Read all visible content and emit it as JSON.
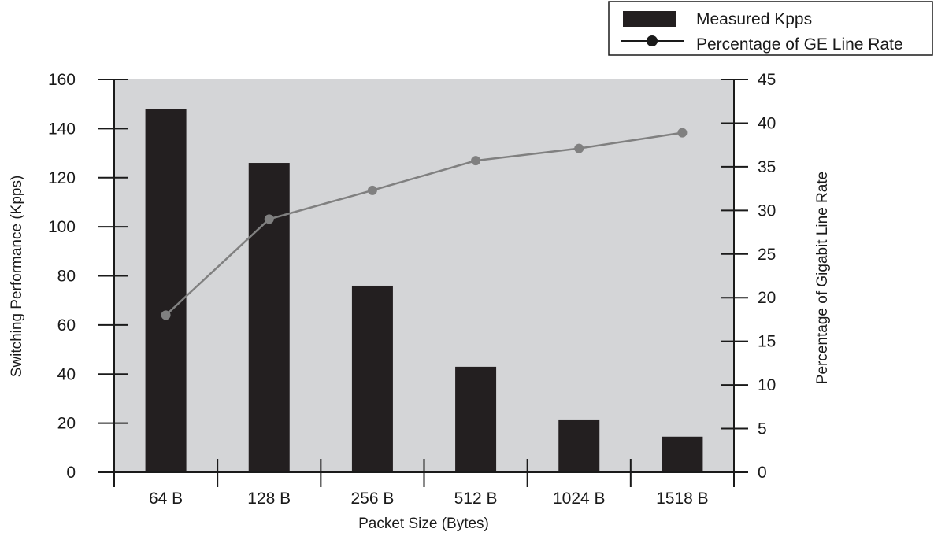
{
  "chart_data": {
    "type": "bar",
    "categories": [
      "64 B",
      "128 B",
      "256 B",
      "512 B",
      "1024 B",
      "1518 B"
    ],
    "series": [
      {
        "name": "Measured Kpps",
        "kind": "bar",
        "axis": "left",
        "values": [
          148,
          126,
          76,
          43,
          21.5,
          14.5
        ]
      },
      {
        "name": "Percentage of GE Line Rate",
        "kind": "line",
        "axis": "right",
        "values": [
          18,
          29,
          32.3,
          35.7,
          37.1,
          38.9
        ]
      }
    ],
    "xlabel": "Packet Size (Bytes)",
    "ylabel": "Switching Performance (Kpps)",
    "y2label": "Percentage of Gigabit Line Rate",
    "ylim": [
      0,
      160
    ],
    "y2lim": [
      0,
      45
    ],
    "yticks": [
      0,
      20,
      40,
      60,
      80,
      100,
      120,
      140,
      160
    ],
    "y2ticks": [
      0,
      5,
      10,
      15,
      20,
      25,
      30,
      35,
      40,
      45
    ],
    "grid": false,
    "legend_position": "top-right",
    "colors": {
      "bar": "#231f20",
      "line": "#808080",
      "plot_background": "#d4d5d7",
      "axis": "#1a1a1a"
    }
  }
}
